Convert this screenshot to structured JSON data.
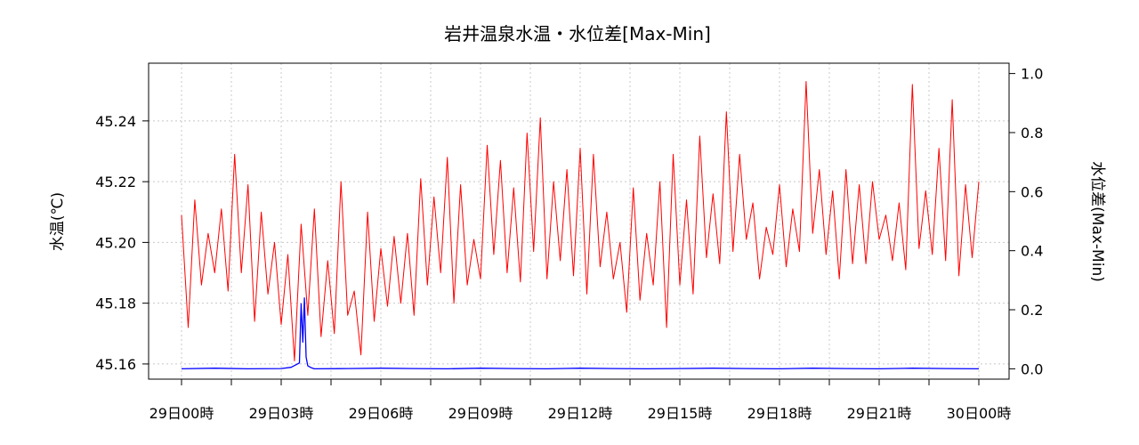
{
  "chart_data": {
    "type": "line",
    "title": "岩井温泉水温・水位差[Max-Min]",
    "ylabel_left": "水温(℃)",
    "ylabel_right": "水位差(Max-Min)",
    "x_ticks": [
      "29日00時",
      "29日03時",
      "29日06時",
      "29日09時",
      "29日12時",
      "29日15時",
      "29日18時",
      "29日21時",
      "30日00時"
    ],
    "y_left_ticks": [
      "45.16",
      "45.18",
      "45.20",
      "45.22",
      "45.24"
    ],
    "y_right_ticks": [
      "0.0",
      "0.2",
      "0.4",
      "0.6",
      "0.8",
      "1.0"
    ],
    "ylim_left": [
      45.155,
      45.259
    ],
    "ylim_right": [
      -0.035,
      1.035
    ],
    "x_hours": [
      0,
      24
    ],
    "grid": true,
    "series": [
      {
        "axis": "left",
        "color": "#ff0000",
        "note": "water temperature, approx. 5-min samples",
        "x_hours": [
          0.0,
          0.2,
          0.4,
          0.6,
          0.8,
          1.0,
          1.2,
          1.4,
          1.6,
          1.8,
          2.0,
          2.2,
          2.4,
          2.6,
          2.8,
          3.0,
          3.2,
          3.4,
          3.6,
          3.8,
          4.0,
          4.2,
          4.4,
          4.6,
          4.8,
          5.0,
          5.2,
          5.4,
          5.6,
          5.8,
          6.0,
          6.2,
          6.4,
          6.6,
          6.8,
          7.0,
          7.2,
          7.4,
          7.6,
          7.8,
          8.0,
          8.2,
          8.4,
          8.6,
          8.8,
          9.0,
          9.2,
          9.4,
          9.6,
          9.8,
          10.0,
          10.2,
          10.4,
          10.6,
          10.8,
          11.0,
          11.2,
          11.4,
          11.6,
          11.8,
          12.0,
          12.2,
          12.4,
          12.6,
          12.8,
          13.0,
          13.2,
          13.4,
          13.6,
          13.8,
          14.0,
          14.2,
          14.4,
          14.6,
          14.8,
          15.0,
          15.2,
          15.4,
          15.6,
          15.8,
          16.0,
          16.2,
          16.4,
          16.6,
          16.8,
          17.0,
          17.2,
          17.4,
          17.6,
          17.8,
          18.0,
          18.2,
          18.4,
          18.6,
          18.8,
          19.0,
          19.2,
          19.4,
          19.6,
          19.8,
          20.0,
          20.2,
          20.4,
          20.6,
          20.8,
          21.0,
          21.2,
          21.4,
          21.6,
          21.8,
          22.0,
          22.2,
          22.4,
          22.6,
          22.8,
          23.0,
          23.2,
          23.4,
          23.6,
          23.8,
          24.0
        ],
        "values": [
          45.209,
          45.172,
          45.214,
          45.186,
          45.203,
          45.19,
          45.211,
          45.184,
          45.229,
          45.19,
          45.219,
          45.174,
          45.21,
          45.183,
          45.2,
          45.173,
          45.196,
          45.161,
          45.206,
          45.176,
          45.211,
          45.169,
          45.194,
          45.17,
          45.22,
          45.176,
          45.184,
          45.163,
          45.21,
          45.174,
          45.198,
          45.179,
          45.202,
          45.18,
          45.203,
          45.176,
          45.221,
          45.186,
          45.215,
          45.19,
          45.228,
          45.18,
          45.219,
          45.186,
          45.201,
          45.188,
          45.232,
          45.196,
          45.227,
          45.19,
          45.218,
          45.187,
          45.236,
          45.197,
          45.241,
          45.188,
          45.22,
          45.194,
          45.224,
          45.189,
          45.231,
          45.183,
          45.229,
          45.192,
          45.21,
          45.188,
          45.2,
          45.177,
          45.218,
          45.181,
          45.203,
          45.186,
          45.22,
          45.172,
          45.229,
          45.186,
          45.214,
          45.183,
          45.235,
          45.195,
          45.216,
          45.193,
          45.243,
          45.197,
          45.229,
          45.201,
          45.213,
          45.188,
          45.205,
          45.196,
          45.219,
          45.192,
          45.211,
          45.197,
          45.253,
          45.203,
          45.224,
          45.196,
          45.217,
          45.188,
          45.224,
          45.193,
          45.219,
          45.193,
          45.22,
          45.201,
          45.209,
          45.194,
          45.213,
          45.191,
          45.252,
          45.198,
          45.217,
          45.196,
          45.231,
          45.194,
          45.247,
          45.189,
          45.219,
          45.195,
          45.22
        ]
      },
      {
        "axis": "right",
        "color": "#0000ff",
        "note": "water level difference",
        "x_hours": [
          0.0,
          1.0,
          2.0,
          3.0,
          3.3,
          3.55,
          3.6,
          3.65,
          3.7,
          3.75,
          3.8,
          3.9,
          4.0,
          5.0,
          6.0,
          7.0,
          8.0,
          9.0,
          10.0,
          11.0,
          12.0,
          13.0,
          14.0,
          15.0,
          16.0,
          17.0,
          18.0,
          19.0,
          20.0,
          21.0,
          22.0,
          23.0,
          24.0
        ],
        "values": [
          0.0,
          0.002,
          0.0,
          0.001,
          0.005,
          0.02,
          0.22,
          0.09,
          0.24,
          0.04,
          0.01,
          0.004,
          0.0,
          0.001,
          0.002,
          0.001,
          0.0,
          0.002,
          0.001,
          0.0,
          0.002,
          0.001,
          0.0,
          0.001,
          0.002,
          0.001,
          0.0,
          0.002,
          0.001,
          0.0,
          0.002,
          0.001,
          0.0
        ]
      }
    ]
  }
}
